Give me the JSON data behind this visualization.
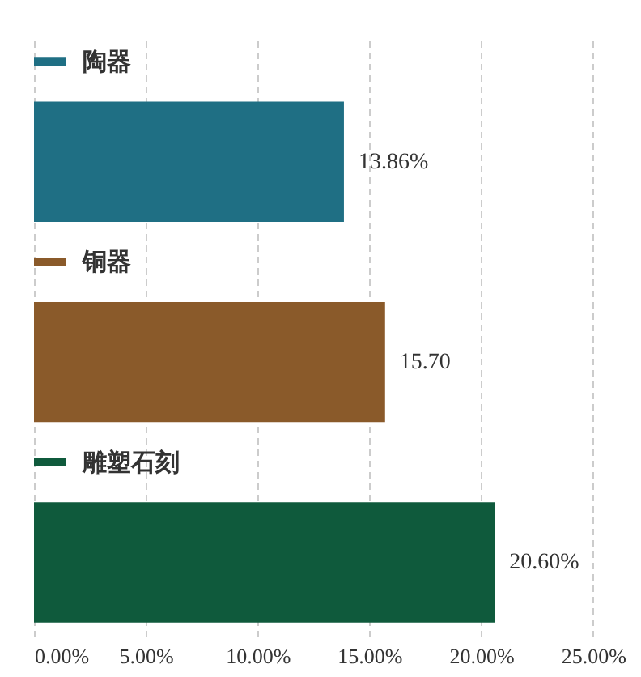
{
  "chart_data": {
    "type": "bar",
    "orientation": "horizontal",
    "categories": [
      "陶器",
      "铜器",
      "雕塑石刻"
    ],
    "values": [
      13.86,
      15.7,
      20.6
    ],
    "colors": [
      "#1f6f84",
      "#8a5a2a",
      "#0f5a3c"
    ],
    "value_labels": [
      "13.86%",
      "15.70",
      "20.60%"
    ],
    "xlim": [
      0,
      27
    ],
    "xticks": [
      {
        "value": 0,
        "label": "0.00%"
      },
      {
        "value": 5,
        "label": "5.00%"
      },
      {
        "value": 10,
        "label": "10.00%"
      },
      {
        "value": 15,
        "label": "15.00%"
      },
      {
        "value": 20,
        "label": "20.00%"
      },
      {
        "value": 25,
        "label": "25.00%"
      }
    ],
    "grid": "x"
  }
}
